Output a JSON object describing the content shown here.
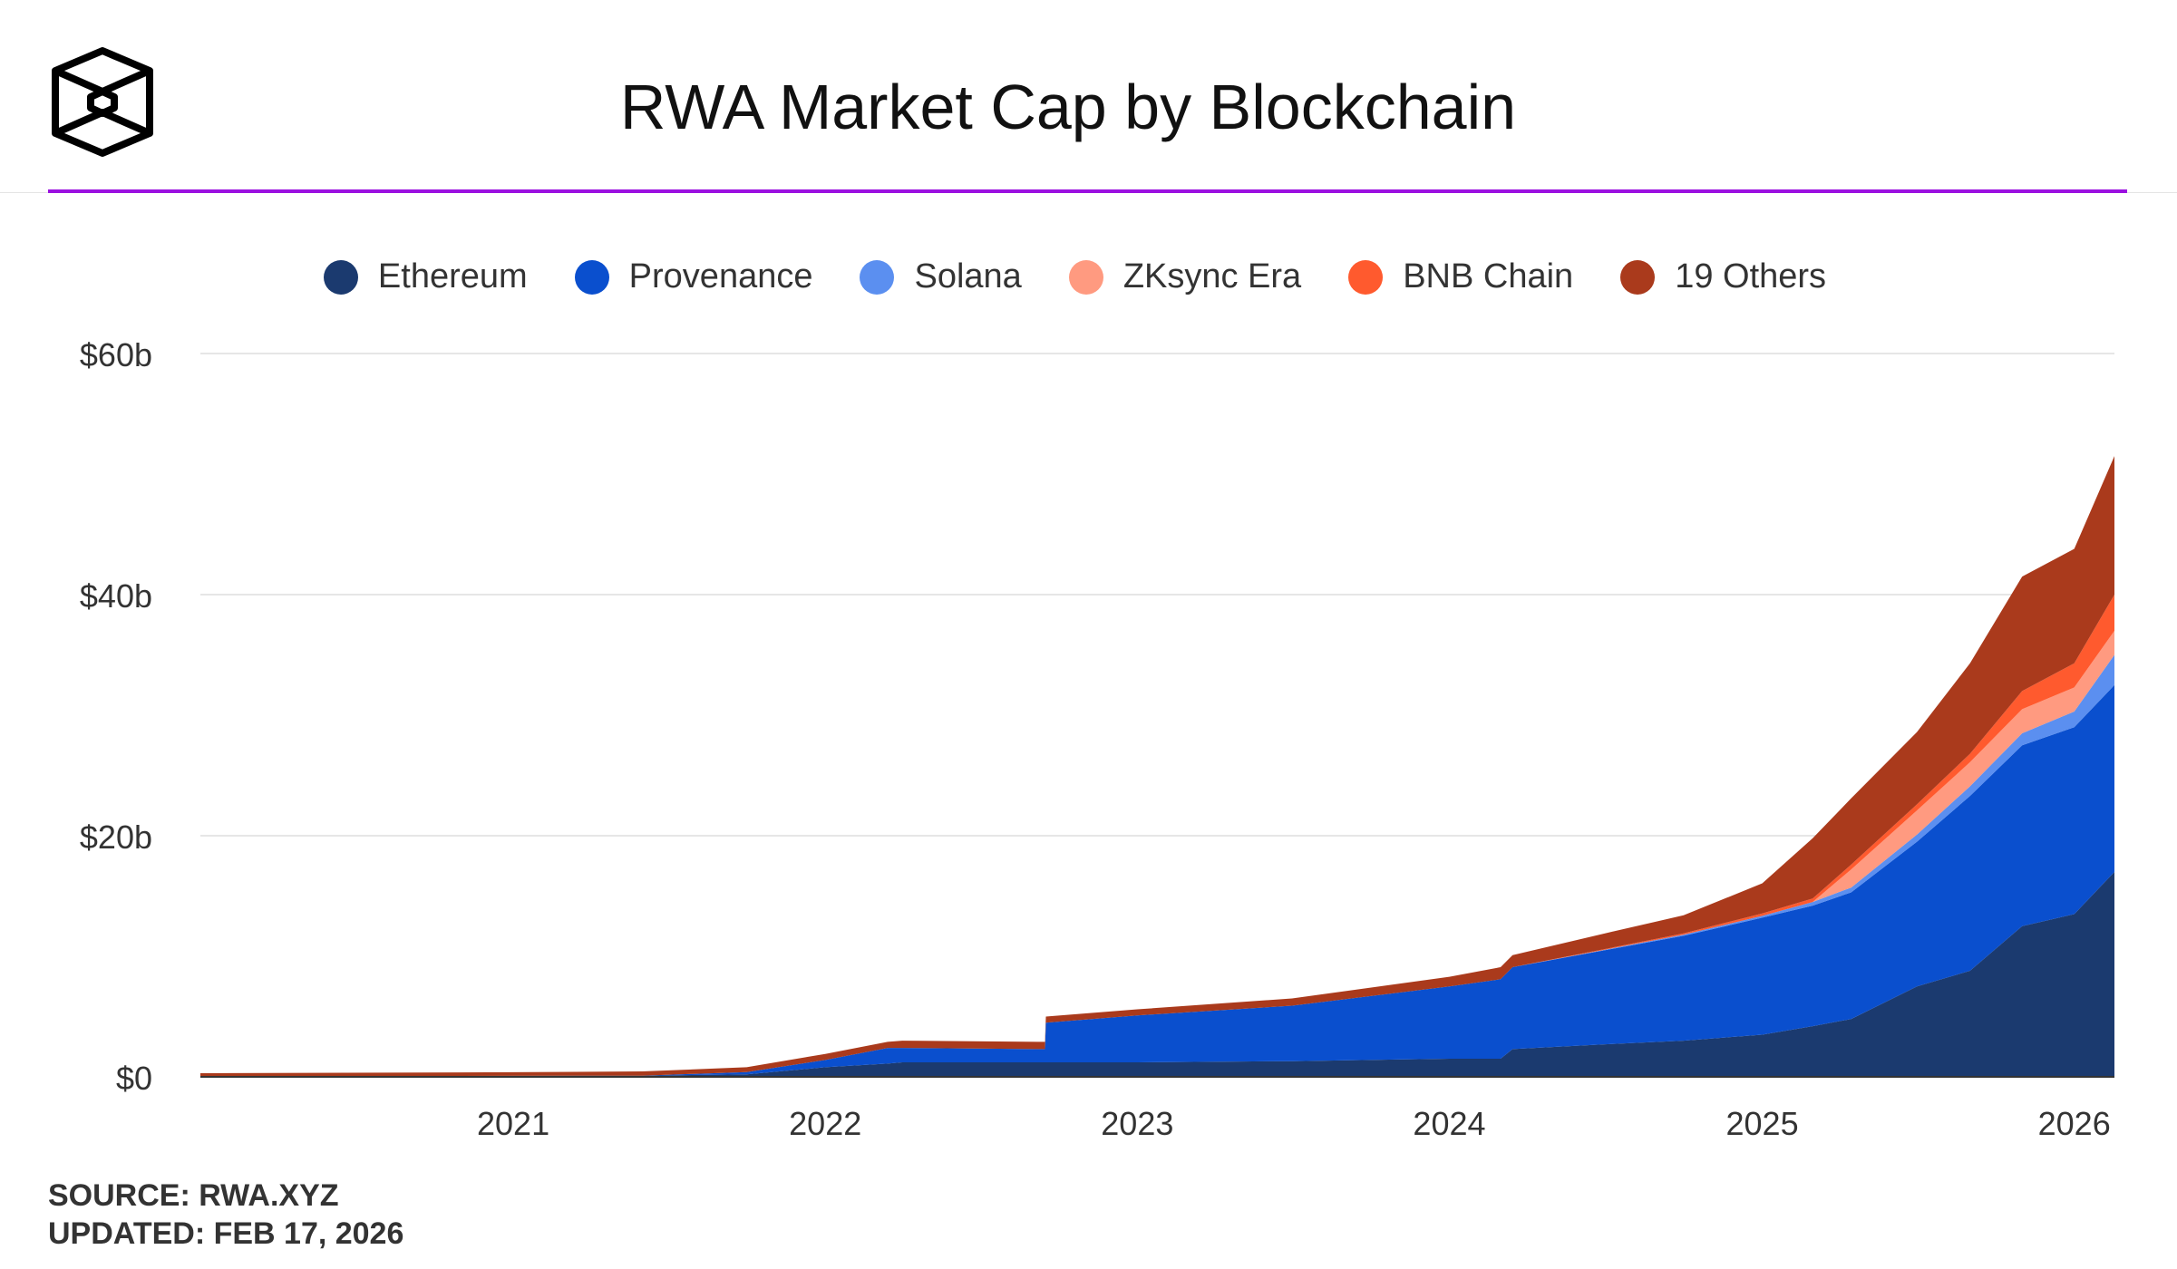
{
  "title": "RWA Market Cap by Blockchain",
  "footer": {
    "source": "SOURCE: RWA.XYZ",
    "updated": "UPDATED: FEB 17, 2026"
  },
  "accent_color": "#9b10e0",
  "chart_data": {
    "type": "area",
    "stacked": true,
    "title": "RWA Market Cap by Blockchain",
    "xlabel": "",
    "ylabel": "",
    "ylim": [
      0,
      60
    ],
    "yticks": [
      0,
      20,
      40,
      60
    ],
    "ytick_labels": [
      "$0",
      "$20b",
      "$40b",
      "$60b"
    ],
    "xticks": [
      "2021",
      "2022",
      "2023",
      "2024",
      "2025",
      "2026"
    ],
    "xlim": [
      "2020-01-01",
      "2026-02-17"
    ],
    "grid": true,
    "legend_placement": "top",
    "x": [
      "2020-01-01",
      "2021-01-01",
      "2021-06-01",
      "2021-10-01",
      "2022-01-01",
      "2022-03-15",
      "2022-04-01",
      "2022-09-15",
      "2022-09-16",
      "2023-01-01",
      "2023-07-01",
      "2024-01-01",
      "2024-03-01",
      "2024-03-15",
      "2024-07-01",
      "2024-10-01",
      "2025-01-01",
      "2025-03-01",
      "2025-04-15",
      "2025-07-01",
      "2025-09-01",
      "2025-11-01",
      "2026-01-01",
      "2026-02-17"
    ],
    "series": [
      {
        "name": "Ethereum",
        "color": "#1b3a6f",
        "values": [
          0.05,
          0.08,
          0.1,
          0.2,
          0.8,
          1.1,
          1.2,
          1.2,
          1.2,
          1.2,
          1.3,
          1.5,
          1.5,
          2.3,
          2.7,
          3.0,
          3.5,
          4.2,
          4.8,
          7.5,
          8.8,
          12.5,
          13.5,
          17
        ]
      },
      {
        "name": "Provenance",
        "color": "#0a4fce",
        "values": [
          0,
          0,
          0,
          0.2,
          0.6,
          1.3,
          1.2,
          1.1,
          3.3,
          3.9,
          4.6,
          6.0,
          6.6,
          6.8,
          7.8,
          8.7,
          9.7,
          10,
          10.5,
          12,
          14.5,
          15,
          15.5,
          15.5
        ]
      },
      {
        "name": "Solana",
        "color": "#5b8ff0",
        "values": [
          0,
          0,
          0,
          0,
          0,
          0,
          0,
          0,
          0,
          0,
          0,
          0,
          0,
          0,
          0.05,
          0.1,
          0.15,
          0.3,
          0.4,
          0.6,
          0.8,
          1.0,
          1.3,
          2.5
        ]
      },
      {
        "name": "ZKsync Era",
        "color": "#ff9a80",
        "values": [
          0,
          0,
          0,
          0,
          0,
          0,
          0,
          0,
          0,
          0,
          0,
          0,
          0,
          0,
          0,
          0,
          0,
          0,
          1.5,
          2.0,
          2.0,
          2.0,
          2.0,
          2.0
        ]
      },
      {
        "name": "BNB Chain",
        "color": "#ff5a2e",
        "values": [
          0,
          0,
          0,
          0,
          0,
          0,
          0,
          0,
          0,
          0,
          0,
          0,
          0,
          0,
          0.05,
          0.1,
          0.2,
          0.3,
          0.4,
          0.5,
          0.7,
          1.5,
          2.0,
          3.0
        ]
      },
      {
        "name": "19 Others",
        "color": "#aa3a1c",
        "values": [
          0.25,
          0.3,
          0.35,
          0.4,
          0.5,
          0.5,
          0.6,
          0.6,
          0.5,
          0.5,
          0.6,
          0.8,
          1.0,
          1.0,
          1.3,
          1.5,
          2.5,
          5.0,
          5.5,
          6.0,
          7.5,
          9.5,
          9.5,
          11.5
        ]
      }
    ]
  }
}
